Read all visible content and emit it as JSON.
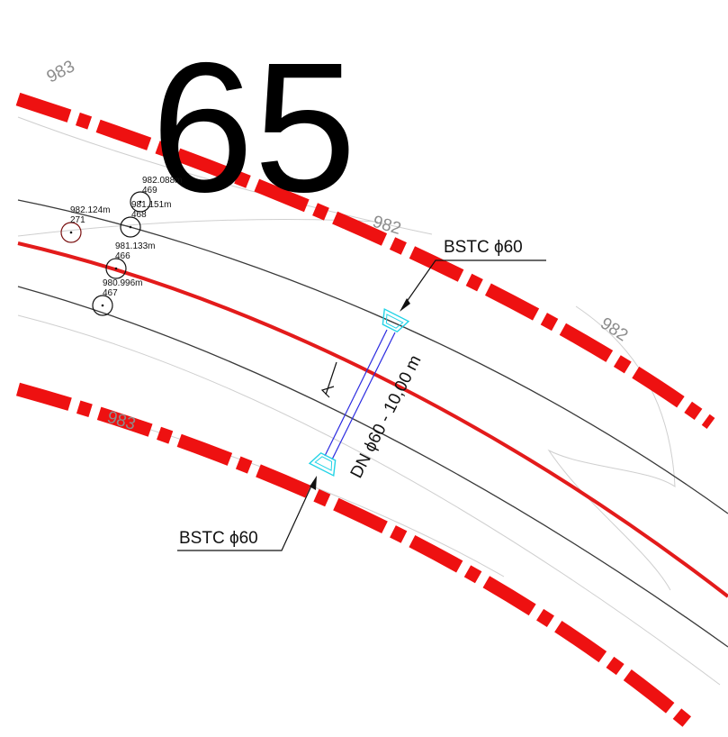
{
  "station_number": "65",
  "contour_labels": {
    "c983_top": "983",
    "c982_mid": "982",
    "c982_right": "982",
    "c983_bottom": "983"
  },
  "survey_points": [
    {
      "elevation": "982.088m",
      "id": "469"
    },
    {
      "elevation": "981.151m",
      "id": "468"
    },
    {
      "elevation": "982.124m",
      "id": "271"
    },
    {
      "elevation": "981.133m",
      "id": "466"
    },
    {
      "elevation": "980.996m",
      "id": "467"
    }
  ],
  "culvert": {
    "inlet_label": "BSTC ϕ60",
    "outlet_label": "BSTC ϕ60",
    "pipe_label": "DN ϕ60 - 10,00 m"
  },
  "colors": {
    "boundary_red": "#ee1111",
    "centerline_red": "#e31b1b",
    "road_edge": "#3a3a3a",
    "contour": "#c8c8c8",
    "pipe_blue": "#2a2ae0",
    "headwall_cyan": "#22d3e6",
    "point_dark_red": "#7a1010"
  }
}
